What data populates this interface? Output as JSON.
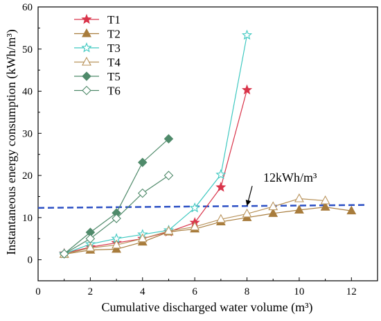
{
  "chart_data": {
    "type": "line",
    "title": "",
    "xlabel": "Cumulative discharged water volume (m³)",
    "ylabel": "Instantaneous energy consumption (kWh/m³)",
    "xlim": [
      0,
      13
    ],
    "ylim": [
      -5,
      60
    ],
    "xticks": [
      0,
      2,
      4,
      6,
      8,
      10,
      12
    ],
    "yticks": [
      0,
      10,
      20,
      30,
      40,
      50,
      60
    ],
    "grid": false,
    "legend_position": "top-left",
    "series": [
      {
        "name": "T1",
        "color": "#d9344a",
        "marker": "star",
        "filled": true,
        "x": [
          1,
          2,
          3,
          4,
          5,
          6,
          7,
          8
        ],
        "y": [
          1.5,
          3.0,
          4.0,
          5.0,
          6.6,
          8.8,
          17.2,
          40.3
        ]
      },
      {
        "name": "T2",
        "color": "#a87c3c",
        "marker": "triangle",
        "filled": true,
        "x": [
          1,
          2,
          3,
          4,
          5,
          6,
          7,
          8,
          9,
          10,
          11,
          12
        ],
        "y": [
          1.3,
          2.3,
          2.5,
          4.2,
          6.6,
          7.3,
          9.0,
          10.0,
          11.0,
          11.8,
          12.5,
          11.6
        ]
      },
      {
        "name": "T3",
        "color": "#3ec8c0",
        "marker": "star",
        "filled": false,
        "x": [
          1,
          2,
          3,
          4,
          5,
          6,
          7,
          8
        ],
        "y": [
          1.4,
          3.7,
          5.0,
          6.0,
          7.0,
          12.3,
          20.2,
          53.3
        ]
      },
      {
        "name": "T4",
        "color": "#b8925a",
        "marker": "triangle",
        "filled": false,
        "x": [
          1,
          2,
          3,
          4,
          5,
          6,
          7,
          8,
          9,
          10,
          11
        ],
        "y": [
          1.3,
          2.8,
          3.5,
          5.0,
          6.8,
          7.8,
          9.6,
          10.9,
          12.6,
          14.5,
          14.0
        ]
      },
      {
        "name": "T5",
        "color": "#4f8a6a",
        "marker": "diamond",
        "filled": true,
        "x": [
          1,
          2,
          3,
          4,
          5
        ],
        "y": [
          1.4,
          6.5,
          11.1,
          23.1,
          28.7
        ]
      },
      {
        "name": "T6",
        "color": "#4f8a6a",
        "marker": "diamond",
        "filled": false,
        "x": [
          1,
          2,
          3,
          4,
          5
        ],
        "y": [
          1.4,
          5.0,
          9.8,
          15.8,
          20.0
        ]
      }
    ],
    "reference_line": {
      "color": "#2b4fc4",
      "style": "dashed",
      "x": [
        0,
        12.5
      ],
      "y": [
        12.3,
        13.0
      ]
    },
    "annotation": {
      "text": "12kWh/m³",
      "arrow_from": [
        8.2,
        17.5
      ],
      "arrow_to": [
        8.0,
        12.8
      ]
    }
  }
}
